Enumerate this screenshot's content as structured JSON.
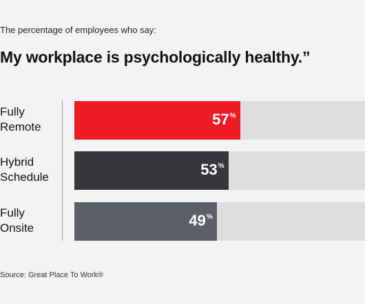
{
  "subtitle": "The percentage of employees who say:",
  "title": "My workplace is psychologically healthy.”",
  "source": "Source: Great Place To Work®",
  "chart_data": {
    "type": "bar",
    "orientation": "horizontal",
    "categories": [
      "Fully Remote",
      "Hybrid Schedule",
      "Fully Onsite"
    ],
    "values": [
      57,
      53,
      49
    ],
    "value_labels": [
      "57",
      "53",
      "49"
    ],
    "unit": "%",
    "xlim": [
      0,
      100
    ],
    "grid": false,
    "colors": [
      "#ed1c24",
      "#35373d",
      "#5c5f66"
    ],
    "track_color": "#dedede"
  }
}
